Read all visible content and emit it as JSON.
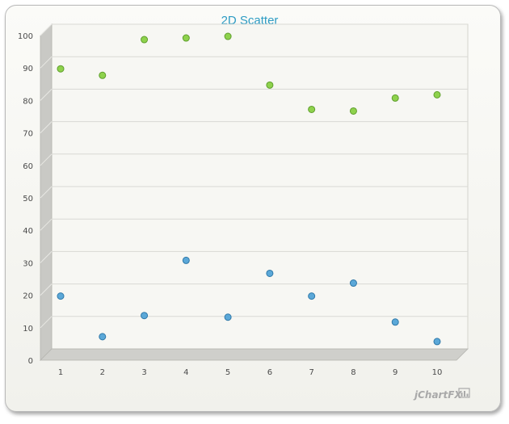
{
  "chart_data": {
    "type": "scatter",
    "title": "2D Scatter",
    "xlabel": "",
    "ylabel": "",
    "x_ticks": [
      "1",
      "2",
      "3",
      "4",
      "5",
      "6",
      "7",
      "8",
      "9",
      "10"
    ],
    "y_ticks": [
      "0",
      "10",
      "20",
      "30",
      "40",
      "50",
      "60",
      "70",
      "80",
      "90",
      "100"
    ],
    "xlim": [
      1,
      10
    ],
    "ylim": [
      0,
      100
    ],
    "grid": true,
    "series": [
      {
        "color": "#8ed24c",
        "points": [
          {
            "x": 1,
            "y": 89
          },
          {
            "x": 2,
            "y": 87
          },
          {
            "x": 3,
            "y": 98
          },
          {
            "x": 4,
            "y": 98.5
          },
          {
            "x": 5,
            "y": 99
          },
          {
            "x": 6,
            "y": 84
          },
          {
            "x": 7,
            "y": 76.5
          },
          {
            "x": 8,
            "y": 76
          },
          {
            "x": 9,
            "y": 80
          },
          {
            "x": 10,
            "y": 81
          }
        ]
      },
      {
        "color": "#5ba8d8",
        "points": [
          {
            "x": 1,
            "y": 19
          },
          {
            "x": 2,
            "y": 6.5
          },
          {
            "x": 3,
            "y": 13
          },
          {
            "x": 4,
            "y": 30
          },
          {
            "x": 5,
            "y": 12.5
          },
          {
            "x": 6,
            "y": 26
          },
          {
            "x": 7,
            "y": 19
          },
          {
            "x": 8,
            "y": 23
          },
          {
            "x": 9,
            "y": 11
          },
          {
            "x": 10,
            "y": 5
          }
        ]
      }
    ]
  },
  "brand": {
    "label": "jChartFX"
  }
}
